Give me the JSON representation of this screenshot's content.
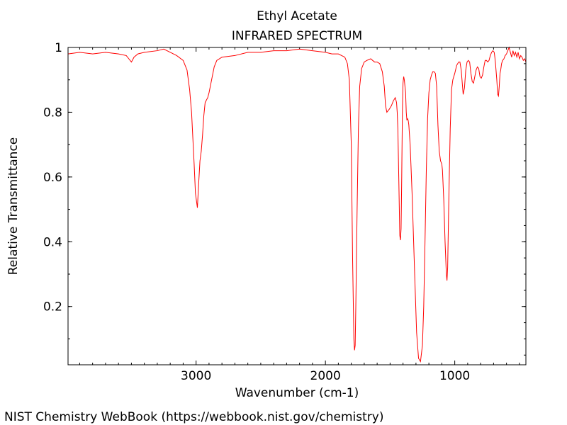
{
  "chart_data": {
    "type": "line",
    "title": "Ethyl Acetate",
    "subtitle": "INFRARED SPECTRUM",
    "xlabel": "Wavenumber (cm-1)",
    "ylabel": "Relative Transmittance",
    "xlim": [
      450,
      3990
    ],
    "ylim": [
      0.02,
      1.0
    ],
    "x_reversed": true,
    "grid": false,
    "x_ticks": [
      {
        "value": 3000,
        "label": "3000"
      },
      {
        "value": 2000,
        "label": "2000"
      },
      {
        "value": 1000,
        "label": "1000"
      }
    ],
    "y_ticks": [
      {
        "value": 0.2,
        "label": "0.2"
      },
      {
        "value": 0.4,
        "label": "0.4"
      },
      {
        "value": 0.6,
        "label": "0.6"
      },
      {
        "value": 0.8,
        "label": "0.8"
      },
      {
        "value": 1.0,
        "label": "1"
      }
    ],
    "series": [
      {
        "color": "#ff0000",
        "points": [
          [
            3990,
            0.98
          ],
          [
            3900,
            0.985
          ],
          [
            3800,
            0.98
          ],
          [
            3700,
            0.985
          ],
          [
            3600,
            0.98
          ],
          [
            3540,
            0.975
          ],
          [
            3520,
            0.965
          ],
          [
            3500,
            0.955
          ],
          [
            3480,
            0.97
          ],
          [
            3450,
            0.98
          ],
          [
            3400,
            0.985
          ],
          [
            3300,
            0.99
          ],
          [
            3250,
            0.995
          ],
          [
            3200,
            0.985
          ],
          [
            3150,
            0.975
          ],
          [
            3100,
            0.96
          ],
          [
            3070,
            0.93
          ],
          [
            3050,
            0.87
          ],
          [
            3035,
            0.8
          ],
          [
            3025,
            0.72
          ],
          [
            3015,
            0.64
          ],
          [
            3005,
            0.55
          ],
          [
            2990,
            0.505
          ],
          [
            2980,
            0.58
          ],
          [
            2970,
            0.65
          ],
          [
            2960,
            0.68
          ],
          [
            2950,
            0.73
          ],
          [
            2940,
            0.79
          ],
          [
            2930,
            0.83
          ],
          [
            2910,
            0.845
          ],
          [
            2900,
            0.86
          ],
          [
            2880,
            0.9
          ],
          [
            2860,
            0.94
          ],
          [
            2840,
            0.96
          ],
          [
            2800,
            0.97
          ],
          [
            2700,
            0.975
          ],
          [
            2600,
            0.985
          ],
          [
            2500,
            0.985
          ],
          [
            2400,
            0.99
          ],
          [
            2300,
            0.99
          ],
          [
            2200,
            0.995
          ],
          [
            2100,
            0.99
          ],
          [
            2000,
            0.985
          ],
          [
            1950,
            0.98
          ],
          [
            1900,
            0.98
          ],
          [
            1850,
            0.97
          ],
          [
            1830,
            0.95
          ],
          [
            1815,
            0.9
          ],
          [
            1800,
            0.7
          ],
          [
            1790,
            0.35
          ],
          [
            1780,
            0.1
          ],
          [
            1775,
            0.065
          ],
          [
            1770,
            0.08
          ],
          [
            1765,
            0.2
          ],
          [
            1755,
            0.5
          ],
          [
            1745,
            0.75
          ],
          [
            1735,
            0.88
          ],
          [
            1720,
            0.935
          ],
          [
            1700,
            0.955
          ],
          [
            1680,
            0.96
          ],
          [
            1650,
            0.965
          ],
          [
            1620,
            0.955
          ],
          [
            1600,
            0.955
          ],
          [
            1580,
            0.95
          ],
          [
            1560,
            0.925
          ],
          [
            1545,
            0.88
          ],
          [
            1535,
            0.82
          ],
          [
            1525,
            0.8
          ],
          [
            1515,
            0.805
          ],
          [
            1505,
            0.81
          ],
          [
            1490,
            0.82
          ],
          [
            1475,
            0.835
          ],
          [
            1460,
            0.845
          ],
          [
            1450,
            0.83
          ],
          [
            1445,
            0.8
          ],
          [
            1440,
            0.75
          ],
          [
            1433,
            0.6
          ],
          [
            1425,
            0.42
          ],
          [
            1420,
            0.405
          ],
          [
            1415,
            0.44
          ],
          [
            1410,
            0.6
          ],
          [
            1405,
            0.8
          ],
          [
            1400,
            0.89
          ],
          [
            1395,
            0.91
          ],
          [
            1390,
            0.9
          ],
          [
            1380,
            0.86
          ],
          [
            1375,
            0.8
          ],
          [
            1370,
            0.775
          ],
          [
            1365,
            0.78
          ],
          [
            1360,
            0.775
          ],
          [
            1355,
            0.76
          ],
          [
            1345,
            0.7
          ],
          [
            1330,
            0.55
          ],
          [
            1310,
            0.3
          ],
          [
            1295,
            0.12
          ],
          [
            1280,
            0.04
          ],
          [
            1265,
            0.03
          ],
          [
            1250,
            0.08
          ],
          [
            1240,
            0.2
          ],
          [
            1230,
            0.4
          ],
          [
            1220,
            0.62
          ],
          [
            1210,
            0.78
          ],
          [
            1200,
            0.86
          ],
          [
            1190,
            0.9
          ],
          [
            1180,
            0.915
          ],
          [
            1170,
            0.925
          ],
          [
            1160,
            0.925
          ],
          [
            1150,
            0.92
          ],
          [
            1140,
            0.88
          ],
          [
            1130,
            0.76
          ],
          [
            1120,
            0.68
          ],
          [
            1110,
            0.65
          ],
          [
            1105,
            0.645
          ],
          [
            1100,
            0.64
          ],
          [
            1095,
            0.62
          ],
          [
            1085,
            0.53
          ],
          [
            1075,
            0.4
          ],
          [
            1065,
            0.3
          ],
          [
            1060,
            0.28
          ],
          [
            1055,
            0.32
          ],
          [
            1045,
            0.55
          ],
          [
            1035,
            0.75
          ],
          [
            1025,
            0.87
          ],
          [
            1015,
            0.9
          ],
          [
            1000,
            0.92
          ],
          [
            985,
            0.945
          ],
          [
            970,
            0.955
          ],
          [
            960,
            0.955
          ],
          [
            950,
            0.93
          ],
          [
            940,
            0.88
          ],
          [
            935,
            0.855
          ],
          [
            925,
            0.875
          ],
          [
            915,
            0.93
          ],
          [
            905,
            0.955
          ],
          [
            895,
            0.96
          ],
          [
            885,
            0.955
          ],
          [
            875,
            0.92
          ],
          [
            865,
            0.895
          ],
          [
            855,
            0.89
          ],
          [
            845,
            0.91
          ],
          [
            835,
            0.93
          ],
          [
            825,
            0.94
          ],
          [
            815,
            0.935
          ],
          [
            805,
            0.91
          ],
          [
            795,
            0.905
          ],
          [
            785,
            0.915
          ],
          [
            775,
            0.94
          ],
          [
            765,
            0.96
          ],
          [
            755,
            0.96
          ],
          [
            745,
            0.955
          ],
          [
            735,
            0.96
          ],
          [
            725,
            0.975
          ],
          [
            715,
            0.985
          ],
          [
            705,
            0.99
          ],
          [
            695,
            0.985
          ],
          [
            690,
            0.97
          ],
          [
            685,
            0.95
          ],
          [
            675,
            0.9
          ],
          [
            668,
            0.855
          ],
          [
            662,
            0.85
          ],
          [
            656,
            0.88
          ],
          [
            650,
            0.92
          ],
          [
            645,
            0.93
          ],
          [
            638,
            0.95
          ],
          [
            630,
            0.96
          ],
          [
            620,
            0.965
          ],
          [
            610,
            0.975
          ],
          [
            600,
            0.98
          ],
          [
            590,
            0.99
          ],
          [
            580,
            1.0
          ],
          [
            570,
            0.985
          ],
          [
            560,
            0.97
          ],
          [
            550,
            0.99
          ],
          [
            540,
            0.975
          ],
          [
            530,
            0.985
          ],
          [
            520,
            0.97
          ],
          [
            510,
            0.985
          ],
          [
            500,
            0.965
          ],
          [
            490,
            0.975
          ],
          [
            480,
            0.97
          ],
          [
            470,
            0.96
          ],
          [
            460,
            0.965
          ],
          [
            450,
            0.955
          ]
        ]
      }
    ]
  },
  "footer": "NIST Chemistry WebBook (https://webbook.nist.gov/chemistry)"
}
